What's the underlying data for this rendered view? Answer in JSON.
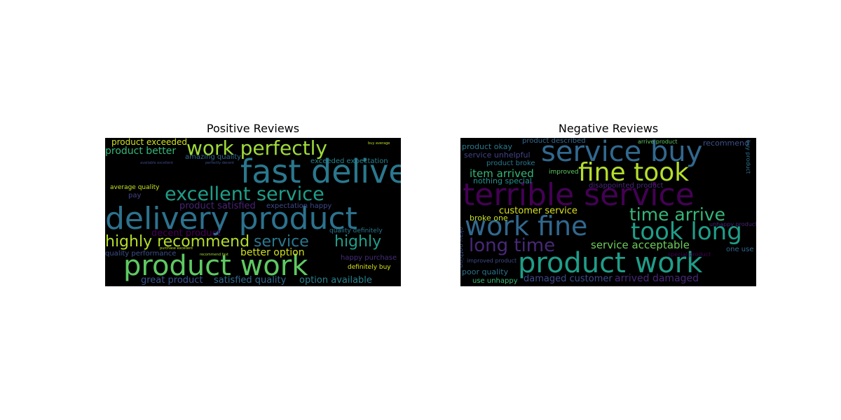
{
  "chart_data": [
    {
      "type": "wordcloud",
      "title": "Positive Reviews",
      "words": [
        {
          "text": "fast delivery",
          "color": "#2a788e"
        },
        {
          "text": "delivery product",
          "color": "#2c728e"
        },
        {
          "text": "product work",
          "color": "#5ec962"
        },
        {
          "text": "work perfectly",
          "color": "#a0da39"
        },
        {
          "text": "excellent service",
          "color": "#1f9e89"
        },
        {
          "text": "highly recommend",
          "color": "#b5de2b"
        },
        {
          "text": "service",
          "color": "#2a788e"
        },
        {
          "text": "highly",
          "color": "#1f9e89"
        },
        {
          "text": "product better",
          "color": "#35b779"
        },
        {
          "text": "product exceeded",
          "color": "#d0e11c"
        },
        {
          "text": "product satisfied",
          "color": "#482475"
        },
        {
          "text": "decent product",
          "color": "#440154"
        },
        {
          "text": "better option",
          "color": "#d0e11c"
        },
        {
          "text": "great product",
          "color": "#3b528b"
        },
        {
          "text": "satisfied quality",
          "color": "#31688e"
        },
        {
          "text": "option available",
          "color": "#26828e"
        },
        {
          "text": "exceeded expectation",
          "color": "#26828e"
        },
        {
          "text": "expectation happy",
          "color": "#3e4a89"
        },
        {
          "text": "amazing quality",
          "color": "#31688e"
        },
        {
          "text": "average quality",
          "color": "#c8e020"
        },
        {
          "text": "quality performance",
          "color": "#3b528b"
        },
        {
          "text": "happy purchase",
          "color": "#472d7b"
        },
        {
          "text": "definitely buy",
          "color": "#d8e219"
        },
        {
          "text": "quality definitely",
          "color": "#2a788e"
        },
        {
          "text": "pay",
          "color": "#414487"
        },
        {
          "text": "buy average",
          "color": "#c2df23"
        },
        {
          "text": "available excellent",
          "color": "#3e4a89"
        },
        {
          "text": "perfectly decent",
          "color": "#3b528b"
        },
        {
          "text": "purchase excellent",
          "color": "#c2df23"
        },
        {
          "text": "recommend fast",
          "color": "#a2da37"
        }
      ]
    },
    {
      "type": "wordcloud",
      "title": "Negative Reviews",
      "words": [
        {
          "text": "terrible service",
          "color": "#440154"
        },
        {
          "text": "service buy",
          "color": "#31688e"
        },
        {
          "text": "fine took",
          "color": "#b5de2b"
        },
        {
          "text": "work fine",
          "color": "#31688e"
        },
        {
          "text": "took long",
          "color": "#1f9e89"
        },
        {
          "text": "product work",
          "color": "#1f9e89"
        },
        {
          "text": "time arrive",
          "color": "#35b779"
        },
        {
          "text": "long time",
          "color": "#482878"
        },
        {
          "text": "service acceptable",
          "color": "#6ccd5a"
        },
        {
          "text": "customer service",
          "color": "#d8e219"
        },
        {
          "text": "item arrived",
          "color": "#35b779"
        },
        {
          "text": "arrived damaged",
          "color": "#482878"
        },
        {
          "text": "damaged customer",
          "color": "#3e4a89"
        },
        {
          "text": "product okay",
          "color": "#2a788e"
        },
        {
          "text": "product described",
          "color": "#31688e"
        },
        {
          "text": "service unhelpful",
          "color": "#414487"
        },
        {
          "text": "product broke",
          "color": "#2a788e"
        },
        {
          "text": "nothing special",
          "color": "#21918c"
        },
        {
          "text": "disappointed product",
          "color": "#482878"
        },
        {
          "text": "improved",
          "color": "#5ec962"
        },
        {
          "text": "broke one",
          "color": "#c8e020"
        },
        {
          "text": "poor quality",
          "color": "#2c728e"
        },
        {
          "text": "use unhappy",
          "color": "#3aba76"
        },
        {
          "text": "recommend",
          "color": "#3b528b"
        },
        {
          "text": "one use",
          "color": "#31688e"
        },
        {
          "text": "unhappy product",
          "color": "#482475"
        },
        {
          "text": "special product",
          "color": "#440154"
        },
        {
          "text": "improved product",
          "color": "#3e4a89"
        },
        {
          "text": "arrive product",
          "color": "#5ec962"
        },
        {
          "text": "buy product",
          "color": "#2c728e"
        },
        {
          "text": "okay nothing",
          "color": "#3b528b"
        }
      ]
    }
  ]
}
